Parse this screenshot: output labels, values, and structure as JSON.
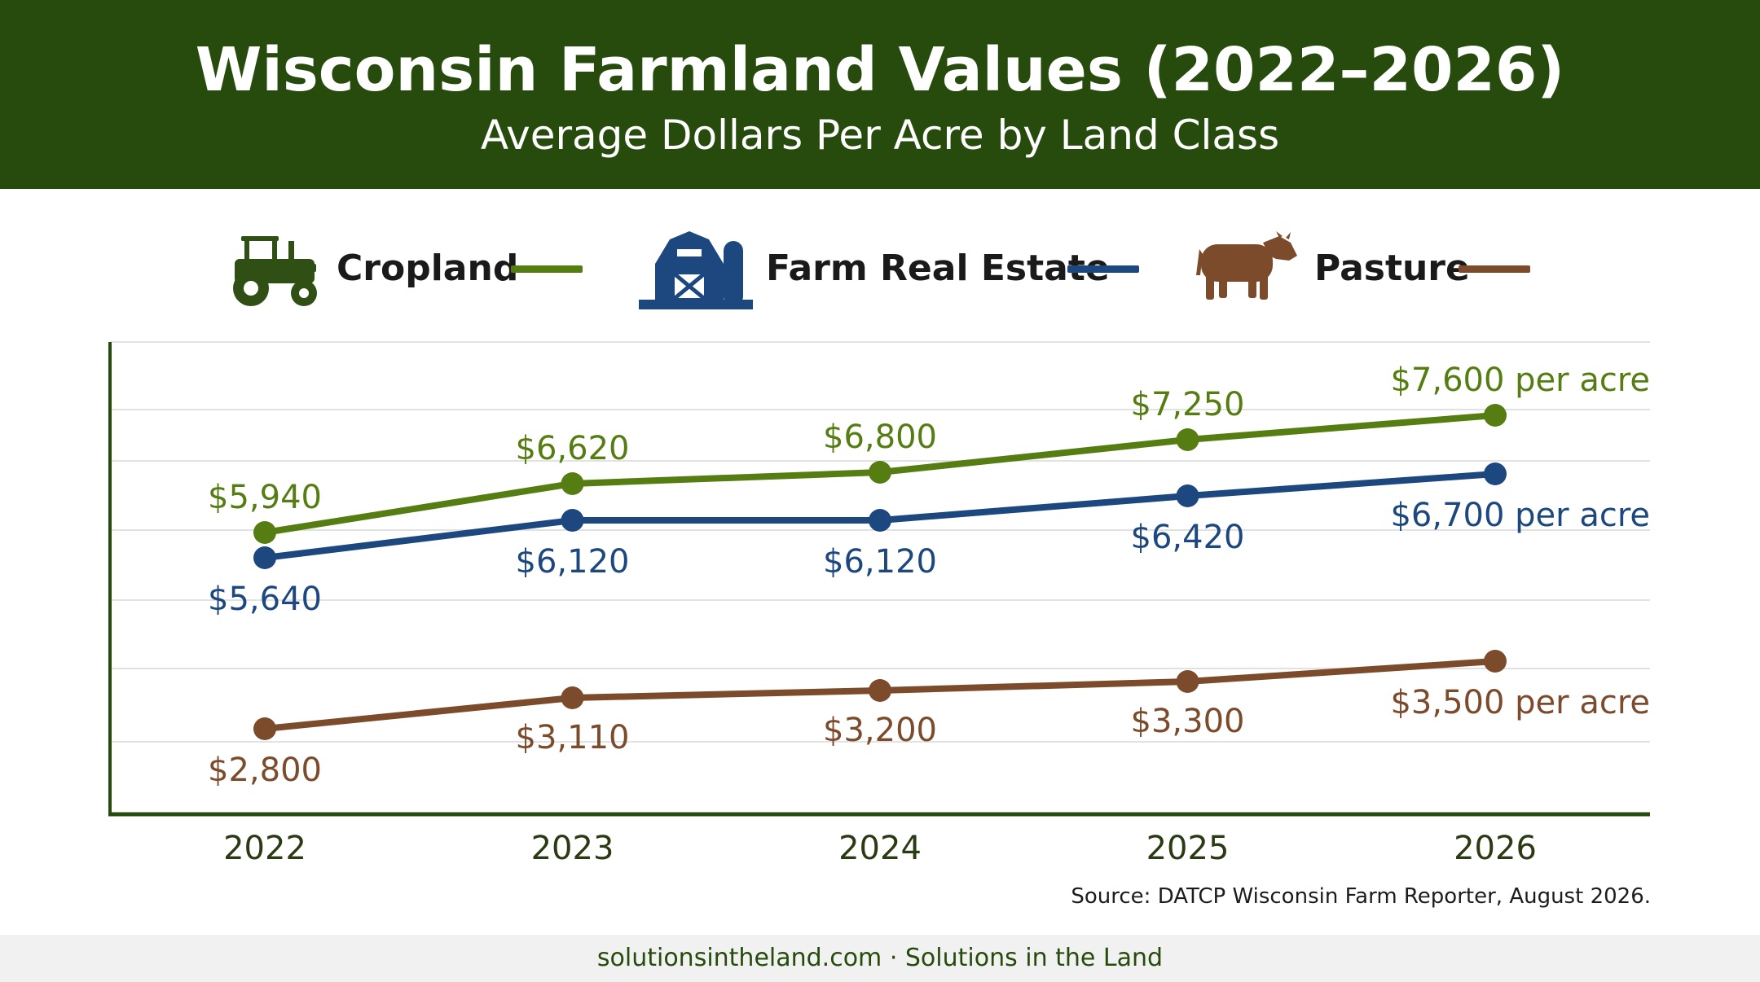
{
  "header": {
    "title": "Wisconsin Farmland Values (2022–2026)",
    "subtitle": "Average Dollars Per Acre by Land Class"
  },
  "legend": {
    "items": [
      {
        "label": "Cropland",
        "icon": "tractor-icon",
        "color": "#567d12"
      },
      {
        "label": "Farm Real Estate",
        "icon": "barn-icon",
        "color": "#1d477f"
      },
      {
        "label": "Pasture",
        "icon": "cow-icon",
        "color": "#7b4b2c"
      }
    ]
  },
  "chart_data": {
    "type": "line",
    "title": "Wisconsin Farmland Values (2022–2026)",
    "subtitle": "Average Dollars Per Acre by Land Class",
    "x": [
      "2022",
      "2023",
      "2024",
      "2025",
      "2026"
    ],
    "ylim": [
      2000,
      8000
    ],
    "grid": true,
    "legend_placement": "top",
    "series": [
      {
        "name": "Cropland",
        "color": "#567d12",
        "values": [
          5940,
          6620,
          6800,
          7250,
          7600
        ],
        "labels": [
          "$5,940",
          "$6,620",
          "$6,800",
          "$7,250",
          "$7,600 per acre"
        ]
      },
      {
        "name": "Farm Real Estate",
        "color": "#1d477f",
        "values": [
          5640,
          6120,
          6120,
          6420,
          6700
        ],
        "labels": [
          "$5,640",
          "$6,120",
          "$6,120",
          "$6,420",
          "$6,700 per acre"
        ]
      },
      {
        "name": "Pasture",
        "color": "#7b4b2c",
        "values": [
          2800,
          3110,
          3200,
          3300,
          3500
        ],
        "labels": [
          "$2,800",
          "$3,110",
          "$3,200",
          "$3,300",
          "$3,500 per acre"
        ]
      }
    ]
  },
  "source": "Source: DATCP Wisconsin Farm Reporter, August 2026.",
  "footer": "solutionsintheland.com · Solutions in the Land"
}
